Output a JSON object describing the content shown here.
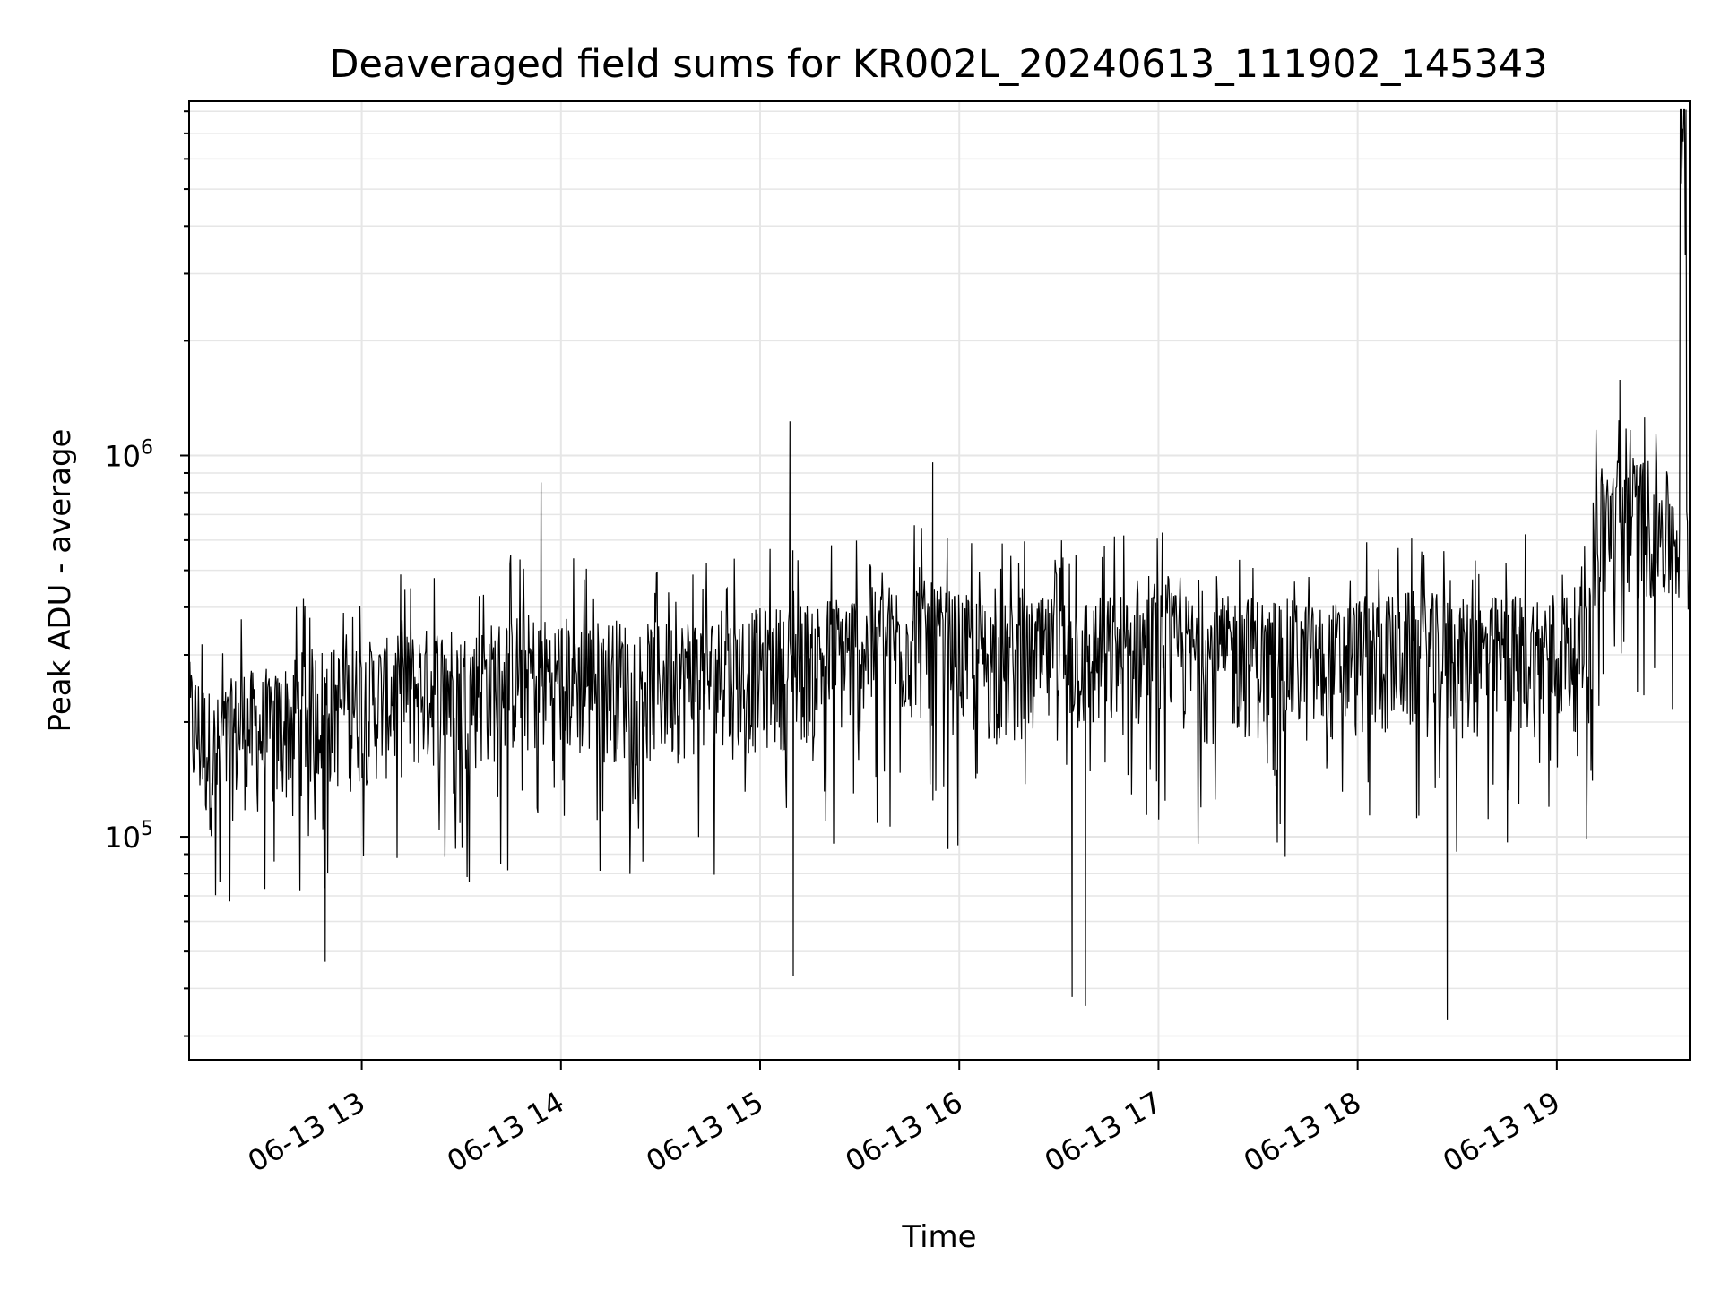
{
  "chart_data": {
    "type": "line",
    "title": "Deaveraged field sums for KR002L_20240613_111902_145343",
    "xlabel": "Time",
    "ylabel": "Peak ADU - average",
    "yscale": "log",
    "ylim": [
      26000,
      8500000
    ],
    "xlim": [
      "2024-06-13 12:08",
      "2024-06-13 19:40"
    ],
    "x_ticks": [
      "06-13 13",
      "06-13 14",
      "06-13 15",
      "06-13 16",
      "06-13 17",
      "06-13 18",
      "06-13 19"
    ],
    "y_ticks": [
      {
        "mantissa": "10",
        "exp": "5"
      },
      {
        "mantissa": "10",
        "exp": "6"
      }
    ],
    "grid": true,
    "line_color": "#000000",
    "grid_color": "#e6e6e6",
    "series": [
      {
        "points": [
          [
            "2024-06-13 12:08",
            200000
          ],
          [
            "2024-06-13 12:16",
            160000
          ],
          [
            "2024-06-13 12:24",
            195000
          ],
          [
            "2024-06-13 12:32",
            180000
          ],
          [
            "2024-06-13 12:40",
            210000
          ],
          [
            "2024-06-13 12:48",
            220000
          ],
          [
            "2024-06-13 12:56",
            215000
          ],
          [
            "2024-06-13 13:00",
            225000
          ],
          [
            "2024-06-13 13:08",
            230000
          ],
          [
            "2024-06-13 13:16",
            240000
          ],
          [
            "2024-06-13 13:24",
            250000
          ],
          [
            "2024-06-13 13:32",
            240000
          ],
          [
            "2024-06-13 13:40",
            255000
          ],
          [
            "2024-06-13 13:48",
            270000
          ],
          [
            "2024-06-13 13:56",
            260000
          ],
          [
            "2024-06-13 14:00",
            265000
          ],
          [
            "2024-06-13 14:08",
            255000
          ],
          [
            "2024-06-13 14:16",
            260000
          ],
          [
            "2024-06-13 14:24",
            250000
          ],
          [
            "2024-06-13 14:32",
            255000
          ],
          [
            "2024-06-13 14:40",
            265000
          ],
          [
            "2024-06-13 14:48",
            260000
          ],
          [
            "2024-06-13 14:56",
            270000
          ],
          [
            "2024-06-13 15:00",
            275000
          ],
          [
            "2024-06-13 15:08",
            280000
          ],
          [
            "2024-06-13 15:16",
            290000
          ],
          [
            "2024-06-13 15:24",
            300000
          ],
          [
            "2024-06-13 15:32",
            310000
          ],
          [
            "2024-06-13 15:40",
            320000
          ],
          [
            "2024-06-13 15:48",
            330000
          ],
          [
            "2024-06-13 15:56",
            310000
          ],
          [
            "2024-06-13 16:00",
            300000
          ],
          [
            "2024-06-13 16:08",
            290000
          ],
          [
            "2024-06-13 16:16",
            280000
          ],
          [
            "2024-06-13 16:24",
            290000
          ],
          [
            "2024-06-13 16:32",
            300000
          ],
          [
            "2024-06-13 16:40",
            295000
          ],
          [
            "2024-06-13 16:48",
            300000
          ],
          [
            "2024-06-13 16:56",
            310000
          ],
          [
            "2024-06-13 17:00",
            305000
          ],
          [
            "2024-06-13 17:08",
            300000
          ],
          [
            "2024-06-13 17:16",
            290000
          ],
          [
            "2024-06-13 17:24",
            300000
          ],
          [
            "2024-06-13 17:32",
            295000
          ],
          [
            "2024-06-13 17:40",
            290000
          ],
          [
            "2024-06-13 17:48",
            280000
          ],
          [
            "2024-06-13 17:56",
            290000
          ],
          [
            "2024-06-13 18:00",
            295000
          ],
          [
            "2024-06-13 18:08",
            300000
          ],
          [
            "2024-06-13 18:16",
            305000
          ],
          [
            "2024-06-13 18:24",
            300000
          ],
          [
            "2024-06-13 18:32",
            290000
          ],
          [
            "2024-06-13 18:40",
            295000
          ],
          [
            "2024-06-13 18:48",
            300000
          ],
          [
            "2024-06-13 18:56",
            305000
          ],
          [
            "2024-06-13 19:04",
            310000
          ],
          [
            "2024-06-13 19:10",
            320000
          ],
          [
            "2024-06-13 19:12",
            650000
          ],
          [
            "2024-06-13 19:20",
            700000
          ],
          [
            "2024-06-13 19:28",
            680000
          ],
          [
            "2024-06-13 19:36",
            600000
          ],
          [
            "2024-06-13 19:38",
            7200000
          ],
          [
            "2024-06-13 19:40",
            550000
          ]
        ],
        "notable_peaks": [
          [
            "2024-06-13 15:09",
            1230000
          ],
          [
            "2024-06-13 19:19",
            1580000
          ],
          [
            "2024-06-13 19:38",
            7200000
          ],
          [
            "2024-06-13 13:54",
            850000
          ],
          [
            "2024-06-13 15:52",
            960000
          ]
        ],
        "notable_dips": [
          [
            "2024-06-13 16:38",
            36000
          ],
          [
            "2024-06-13 18:27",
            33000
          ],
          [
            "2024-06-13 16:34",
            38000
          ],
          [
            "2024-06-13 12:49",
            47000
          ],
          [
            "2024-06-13 15:10",
            43000
          ]
        ]
      }
    ]
  }
}
